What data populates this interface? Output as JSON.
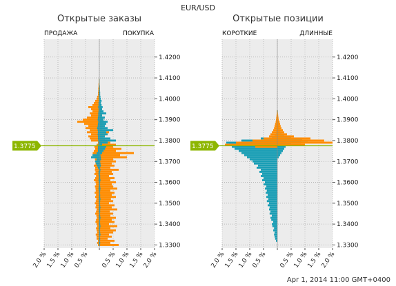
{
  "pair": "EUR/USD",
  "timestamp": "Apr 1, 2014 11:00 GMT+0400",
  "current_price": "1.3775",
  "colors": {
    "orange": "#ff8c00",
    "teal": "#1a9eb5",
    "price_marker": "#8db600",
    "panel_bg": "#ececec",
    "grid": "#aaaaaa"
  },
  "chart_data": [
    {
      "type": "bar",
      "orientation": "horizontal-diverging",
      "title": "Открытые заказы",
      "left_label": "ПРОДАЖА",
      "right_label": "ПОКУПКА",
      "y_ticks": [
        "1.4200",
        "1.4100",
        "1.4000",
        "1.3900",
        "1.3800",
        "1.3700",
        "1.3600",
        "1.3500",
        "1.3400",
        "1.3300"
      ],
      "x_ticks": [
        "2.0 %",
        "1.5 %",
        "1.0 %",
        "0.5 %",
        "",
        "0.5 %",
        "1.0 %",
        "1.5 %",
        "2.0 %"
      ],
      "ylim": [
        1.3285,
        1.4285
      ],
      "xlim": [
        -2.0,
        2.0
      ],
      "marker_price": 1.3775,
      "series": [
        {
          "name": "",
          "color": "#ff8c00",
          "price_start": 1.33,
          "price_step": 0.001,
          "left_values": [
            0.05,
            0.08,
            0.05,
            0.1,
            0.1,
            0.13,
            0.08,
            0.1,
            0.12,
            0.08,
            0.1,
            0.14,
            0.12,
            0.09,
            0.11,
            0.15,
            0.12,
            0.1,
            0.14,
            0.12,
            0.16,
            0.13,
            0.11,
            0.15,
            0.12,
            0.17,
            0.13,
            0.14,
            0.16,
            0.12,
            0.14,
            0.2,
            0.15,
            0.12,
            0.18,
            0.14,
            0.16,
            0.15,
            0.2,
            0.14,
            0.12,
            0.16,
            0.18,
            0.22,
            0.24,
            0.2,
            0.15,
            0.18,
            0.1,
            0.05,
            0.3,
            0.35,
            0.4,
            0.3,
            0.45,
            0.35,
            0.5,
            0.4,
            0.55,
            0.8,
            0.6,
            0.45,
            0.3,
            0.35,
            0.25,
            0.3,
            0.4,
            0.25,
            0.2,
            0.15,
            0.1,
            0.08,
            0.05,
            0.05,
            0.04,
            0.04,
            0.03,
            0.03,
            0.02,
            0.02
          ],
          "right_values": [
            0.7,
            0.4,
            0.55,
            0.3,
            0.45,
            0.35,
            0.5,
            0.6,
            0.4,
            0.65,
            0.35,
            0.55,
            0.45,
            0.6,
            0.4,
            0.5,
            0.38,
            0.65,
            0.45,
            0.55,
            0.35,
            0.5,
            0.42,
            0.6,
            0.45,
            0.55,
            0.4,
            0.65,
            0.5,
            0.45,
            0.6,
            0.4,
            0.55,
            0.35,
            0.5,
            0.45,
            0.7,
            0.4,
            0.55,
            0.45,
            0.6,
            0.5,
            1.0,
            0.75,
            1.25,
            0.6,
            0.8,
            0.5,
            0.6,
            0.4,
            0.3,
            0.2,
            0.15,
            0.25,
            0.35,
            0.2,
            0.1,
            0.15,
            0.12,
            0.2,
            0.15,
            0.08,
            0.1,
            0.05,
            0.06,
            0.05,
            0.04,
            0.04,
            0.03,
            0.03,
            0.03,
            0.02,
            0.02,
            0.02,
            0.02,
            0.02,
            0.01,
            0.01,
            0.01,
            0.01
          ]
        },
        {
          "name": "",
          "color": "#1a9eb5",
          "price_start": 1.33,
          "price_step": 0.001,
          "left_values": [
            0.01,
            0.02,
            0.01,
            0.02,
            0.01,
            0.02,
            0.01,
            0.02,
            0.02,
            0.01,
            0.02,
            0.02,
            0.01,
            0.02,
            0.02,
            0.01,
            0.02,
            0.02,
            0.02,
            0.01,
            0.02,
            0.02,
            0.02,
            0.02,
            0.01,
            0.02,
            0.02,
            0.03,
            0.02,
            0.02,
            0.02,
            0.03,
            0.02,
            0.02,
            0.03,
            0.03,
            0.02,
            0.05,
            0.08,
            0.12,
            0.15,
            0.1,
            0.3,
            0.25,
            0.1,
            0.05,
            0.05,
            0.05,
            0.04,
            0.03,
            0.04,
            0.05,
            0.05,
            0.06,
            0.05,
            0.06,
            0.08,
            0.06,
            0.05,
            0.04,
            0.06,
            0.05,
            0.04,
            0.04,
            0.03,
            0.03,
            0.04,
            0.03,
            0.03,
            0.02,
            0.02,
            0.02,
            0.02,
            0.02,
            0.02,
            0.01,
            0.01,
            0.01,
            0.01,
            0.01
          ],
          "right_values": [
            0.02,
            0.03,
            0.02,
            0.03,
            0.02,
            0.04,
            0.03,
            0.02,
            0.03,
            0.04,
            0.03,
            0.02,
            0.03,
            0.04,
            0.03,
            0.02,
            0.03,
            0.03,
            0.04,
            0.03,
            0.02,
            0.03,
            0.04,
            0.03,
            0.03,
            0.02,
            0.03,
            0.04,
            0.03,
            0.02,
            0.03,
            0.04,
            0.03,
            0.03,
            0.02,
            0.03,
            0.04,
            0.03,
            0.05,
            0.04,
            0.03,
            0.06,
            0.05,
            0.04,
            0.1,
            0.15,
            0.2,
            0.25,
            0.1,
            0.3,
            0.6,
            0.4,
            0.2,
            0.3,
            0.25,
            0.5,
            0.3,
            0.2,
            0.25,
            0.3,
            0.15,
            0.2,
            0.1,
            0.25,
            0.15,
            0.1,
            0.12,
            0.08,
            0.06,
            0.08,
            0.05,
            0.04,
            0.03,
            0.03,
            0.02,
            0.02,
            0.02,
            0.01,
            0.01,
            0.01
          ]
        }
      ]
    },
    {
      "type": "bar",
      "orientation": "horizontal-diverging",
      "title": "Открытые позиции",
      "left_label": "КОРОТКИЕ",
      "right_label": "ДЛИННЫЕ",
      "y_ticks": [
        "1.4200",
        "1.4100",
        "1.4000",
        "1.3900",
        "1.3800",
        "1.3700",
        "1.3600",
        "1.3500",
        "1.3400",
        "1.3300"
      ],
      "x_ticks": [
        "2.0 %",
        "1.5 %",
        "1.0 %",
        "0.5 %",
        "",
        "0.5 %",
        "1.0 %",
        "1.5 %",
        "2.0 %"
      ],
      "ylim": [
        1.3285,
        1.4285
      ],
      "xlim": [
        -2.0,
        2.0
      ],
      "marker_price": 1.3775,
      "series": [
        {
          "name": "",
          "color": "#1a9eb5",
          "price_start": 1.332,
          "price_step": 0.001,
          "left_values": [
            0.05,
            0.08,
            0.1,
            0.12,
            0.1,
            0.15,
            0.12,
            0.18,
            0.2,
            0.15,
            0.22,
            0.25,
            0.2,
            0.28,
            0.25,
            0.3,
            0.28,
            0.35,
            0.3,
            0.38,
            0.33,
            0.4,
            0.35,
            0.42,
            0.38,
            0.45,
            0.4,
            0.5,
            0.45,
            0.55,
            0.5,
            0.6,
            0.55,
            0.65,
            0.6,
            0.75,
            0.7,
            0.85,
            0.9,
            1.0,
            1.1,
            1.2,
            1.3,
            1.4,
            1.55,
            1.65,
            1.75,
            1.85,
            1.3,
            0.6,
            0.2,
            0.1,
            0.05,
            0.04,
            0.03,
            0.03,
            0.02,
            0.02,
            0.02,
            0.01,
            0.01,
            0.01,
            0.01
          ],
          "right_values": [
            0.0,
            0.0,
            0.0,
            0.0,
            0.0,
            0.0,
            0.0,
            0.0,
            0.0,
            0.0,
            0.0,
            0.0,
            0.0,
            0.0,
            0.0,
            0.0,
            0.0,
            0.0,
            0.0,
            0.0,
            0.0,
            0.0,
            0.0,
            0.0,
            0.0,
            0.0,
            0.0,
            0.0,
            0.0,
            0.0,
            0.0,
            0.0,
            0.0,
            0.0,
            0.0,
            0.0,
            0.0,
            0.0,
            0.0,
            0.0,
            0.05,
            0.1,
            0.15,
            0.2,
            0.25,
            0.3,
            0.5,
            0.85,
            1.1,
            0.9,
            0.5,
            0.25,
            0.15,
            0.1,
            0.08,
            0.06,
            0.05,
            0.04,
            0.03,
            0.03,
            0.02,
            0.02,
            0.02
          ]
        },
        {
          "name": "",
          "color": "#ff8c00",
          "price_start": 1.332,
          "price_step": 0.001,
          "left_values": [
            0.0,
            0.0,
            0.0,
            0.0,
            0.0,
            0.0,
            0.0,
            0.0,
            0.0,
            0.0,
            0.0,
            0.0,
            0.0,
            0.0,
            0.0,
            0.0,
            0.0,
            0.0,
            0.0,
            0.0,
            0.0,
            0.0,
            0.0,
            0.0,
            0.0,
            0.0,
            0.0,
            0.0,
            0.0,
            0.0,
            0.0,
            0.0,
            0.0,
            0.0,
            0.0,
            0.0,
            0.0,
            0.0,
            0.0,
            0.0,
            0.0,
            0.0,
            0.0,
            0.0,
            0.0,
            0.8,
            1.9,
            1.5,
            0.9,
            0.5,
            0.3,
            0.25,
            0.2,
            0.15,
            0.12,
            0.1,
            0.08,
            0.06,
            0.05,
            0.04,
            0.03,
            0.02,
            0.02
          ],
          "right_values": [
            0.0,
            0.0,
            0.0,
            0.0,
            0.0,
            0.0,
            0.0,
            0.0,
            0.0,
            0.0,
            0.0,
            0.0,
            0.0,
            0.0,
            0.0,
            0.0,
            0.0,
            0.0,
            0.0,
            0.0,
            0.0,
            0.0,
            0.0,
            0.0,
            0.0,
            0.0,
            0.0,
            0.0,
            0.0,
            0.0,
            0.0,
            0.0,
            0.0,
            0.0,
            0.0,
            0.0,
            0.0,
            0.0,
            0.0,
            0.0,
            0.0,
            0.0,
            0.0,
            0.0,
            0.0,
            0.0,
            1.0,
            2.0,
            1.7,
            1.2,
            0.6,
            0.35,
            0.25,
            0.2,
            0.15,
            0.12,
            0.1,
            0.08,
            0.05,
            0.04,
            0.03,
            0.02,
            0.01
          ]
        }
      ]
    }
  ]
}
